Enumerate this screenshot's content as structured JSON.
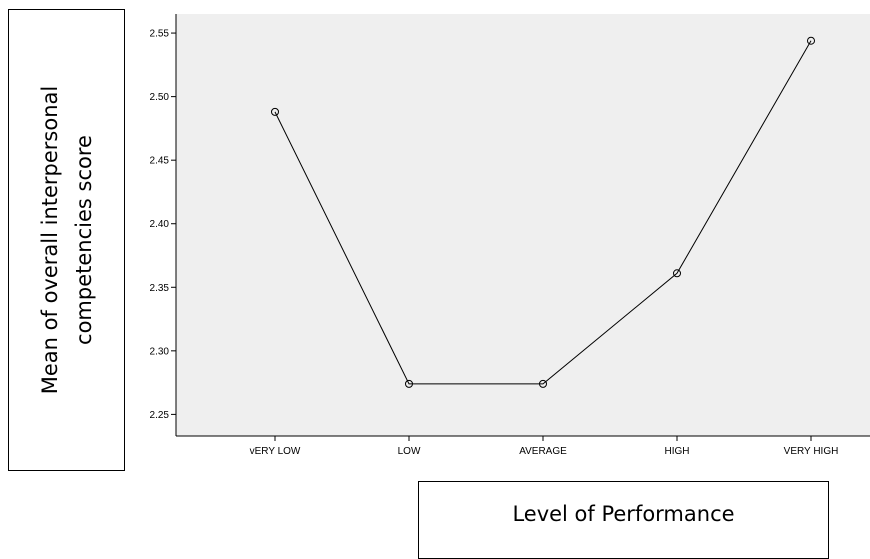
{
  "chart_data": {
    "type": "line",
    "categories": [
      "vERY LOW",
      "LOW",
      "AVERAGE",
      "HIGH",
      "VERY HIGH"
    ],
    "values": [
      2.488,
      2.274,
      2.274,
      2.361,
      2.544
    ],
    "xlabel": "Level of Performance",
    "ylabel": "Mean of overall interpersonal competencies score",
    "ylim": [
      2.233,
      2.565
    ],
    "yticks": [
      "2.25",
      "2.30",
      "2.35",
      "2.40",
      "2.45",
      "2.50",
      "2.55"
    ],
    "grid": false,
    "colors": {
      "plot_background": "#efefef",
      "line": "#000000"
    }
  }
}
